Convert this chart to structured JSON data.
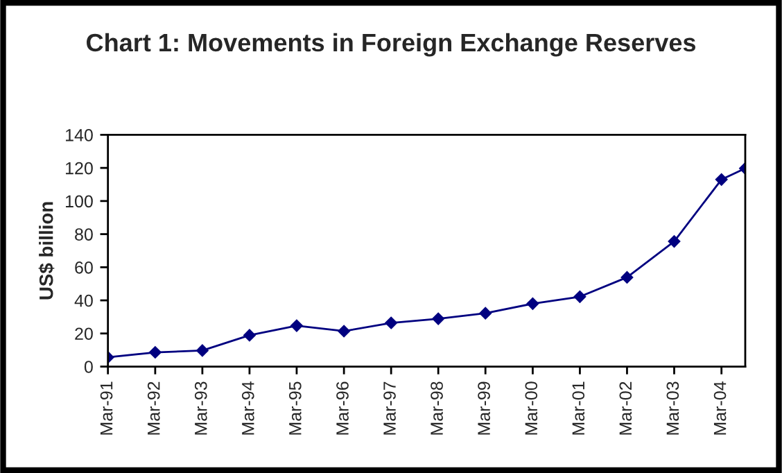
{
  "chart_data": {
    "type": "line",
    "title": "Chart 1: Movements in Foreign Exchange Reserves",
    "ylabel": "US$ billion",
    "x": [
      "1991-03",
      "1992-03",
      "1993-03",
      "1994-03",
      "1995-03",
      "1996-03",
      "1997-03",
      "1998-03",
      "1999-03",
      "2000-03",
      "2001-03",
      "2002-03",
      "2003-03",
      "2004-03",
      "2004-09"
    ],
    "series": [
      {
        "color": "#000080",
        "values": [
          5.6,
          8.6,
          9.7,
          18.9,
          24.7,
          21.4,
          26.4,
          28.9,
          32.2,
          38.0,
          42.2,
          53.9,
          75.6,
          113.0,
          119.7
        ]
      }
    ],
    "xlim": [
      "1991-03",
      "2004-09"
    ],
    "xticks": [
      {
        "value": "1991-03",
        "label": "Mar-91"
      },
      {
        "value": "1992-03",
        "label": "Mar-92"
      },
      {
        "value": "1993-03",
        "label": "Mar-93"
      },
      {
        "value": "1994-03",
        "label": "Mar-94"
      },
      {
        "value": "1995-03",
        "label": "Mar-95"
      },
      {
        "value": "1996-03",
        "label": "Mar-96"
      },
      {
        "value": "1997-03",
        "label": "Mar-97"
      },
      {
        "value": "1998-03",
        "label": "Mar-98"
      },
      {
        "value": "1999-03",
        "label": "Mar-99"
      },
      {
        "value": "2000-03",
        "label": "Mar-00"
      },
      {
        "value": "2001-03",
        "label": "Mar-01"
      },
      {
        "value": "2002-03",
        "label": "Mar-02"
      },
      {
        "value": "2003-03",
        "label": "Mar-03"
      },
      {
        "value": "2004-03",
        "label": "Mar-04"
      }
    ],
    "ylim": [
      0,
      140
    ],
    "yticks": [
      0,
      20,
      40,
      60,
      80,
      100,
      120,
      140
    ],
    "grid": false,
    "marker": "diamond",
    "line_style": "solid"
  }
}
